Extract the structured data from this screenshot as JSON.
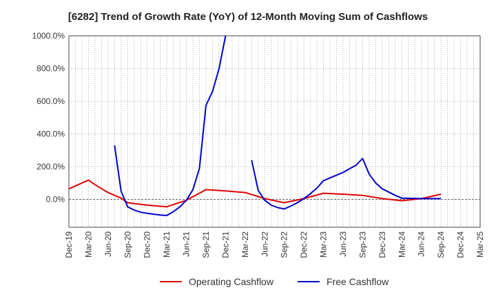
{
  "chart_data": {
    "type": "line",
    "title": "[6282]  Trend of Growth Rate (YoY) of 12-Month Moving Sum of Cashflows",
    "xlabel": "",
    "ylabel": "",
    "x_tick_labels": [
      "Dec-19",
      "Mar-20",
      "Jun-20",
      "Sep-20",
      "Dec-20",
      "Mar-21",
      "Jun-21",
      "Sep-21",
      "Dec-21",
      "Mar-22",
      "Jun-22",
      "Sep-22",
      "Dec-22",
      "Mar-23",
      "Jun-23",
      "Sep-23",
      "Dec-23",
      "Mar-24",
      "Jun-24",
      "Sep-24",
      "Dec-24",
      "Mar-25"
    ],
    "y_tick_labels": [
      "0.0%",
      "200.0%",
      "400.0%",
      "600.0%",
      "800.0%",
      "1000.0%"
    ],
    "y_ticks": [
      0,
      200,
      400,
      600,
      800,
      1000
    ],
    "ylim": [
      -170,
      1000
    ],
    "xlim": [
      "Dec-19",
      "Mar-25"
    ],
    "grid": true,
    "legend_position": "bottom",
    "series": [
      {
        "name": "Operating Cashflow",
        "color": "#e00000",
        "points": [
          [
            "Dec-19",
            65
          ],
          [
            "Mar-20",
            118
          ],
          [
            "Apr-20",
            90
          ],
          [
            "Jun-20",
            42
          ],
          [
            "Aug-20",
            8
          ],
          [
            "Sep-20",
            -20
          ],
          [
            "Dec-20",
            -35
          ],
          [
            "Mar-21",
            -45
          ],
          [
            "Jun-21",
            -5
          ],
          [
            "Sep-21",
            60
          ],
          [
            "Dec-21",
            52
          ],
          [
            "Mar-22",
            42
          ],
          [
            "Jun-22",
            5
          ],
          [
            "Sep-22",
            -20
          ],
          [
            "Dec-22",
            5
          ],
          [
            "Mar-23",
            38
          ],
          [
            "Jun-23",
            32
          ],
          [
            "Sep-23",
            25
          ],
          [
            "Dec-23",
            5
          ],
          [
            "Mar-24",
            -8
          ],
          [
            "Jun-24",
            5
          ],
          [
            "Sep-24",
            32
          ]
        ]
      },
      {
        "name": "Free Cashflow",
        "color": "#0000cc",
        "segments": [
          [
            [
              "Jul-20",
              330
            ],
            [
              "Aug-20",
              50
            ],
            [
              "Sep-20",
              -45
            ],
            [
              "Oct-20",
              -65
            ],
            [
              "Nov-20",
              -78
            ],
            [
              "Dec-20",
              -85
            ],
            [
              "Jan-21",
              -90
            ],
            [
              "Feb-21",
              -95
            ],
            [
              "Mar-21",
              -98
            ],
            [
              "Apr-21",
              -75
            ],
            [
              "May-21",
              -45
            ],
            [
              "Jun-21",
              -5
            ],
            [
              "Jul-21",
              60
            ],
            [
              "Aug-21",
              190
            ],
            [
              "Sep-21",
              575
            ],
            [
              "Oct-21",
              660
            ],
            [
              "Nov-21",
              800
            ],
            [
              "Dec-21",
              1000
            ]
          ],
          [
            [
              "Apr-22",
              240
            ],
            [
              "May-22",
              55
            ],
            [
              "Jun-22",
              -5
            ],
            [
              "Jul-22",
              -35
            ],
            [
              "Aug-22",
              -50
            ],
            [
              "Sep-22",
              -58
            ],
            [
              "Oct-22",
              -40
            ],
            [
              "Nov-22",
              -20
            ],
            [
              "Dec-22",
              5
            ],
            [
              "Jan-23",
              35
            ],
            [
              "Feb-23",
              70
            ],
            [
              "Mar-23",
              115
            ],
            [
              "Jun-23",
              165
            ],
            [
              "Aug-23",
              210
            ],
            [
              "Sep-23",
              250
            ],
            [
              "Oct-23",
              155
            ],
            [
              "Nov-23",
              100
            ],
            [
              "Dec-23",
              65
            ],
            [
              "Feb-24",
              25
            ],
            [
              "Mar-24",
              8
            ],
            [
              "Jun-24",
              5
            ],
            [
              "Sep-24",
              5
            ]
          ]
        ]
      }
    ]
  }
}
